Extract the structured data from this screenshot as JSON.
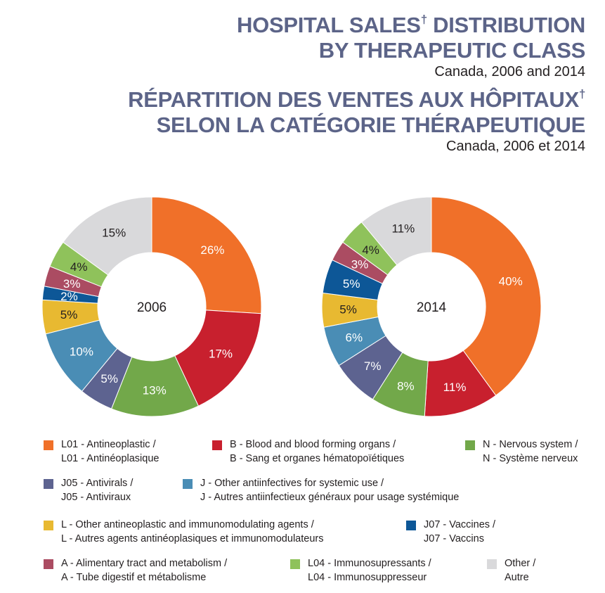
{
  "title_en_line1": "HOSPITAL SALES",
  "dagger": "†",
  "title_en_line1_b": " DISTRIBUTION",
  "title_en_line2": "BY THERAPEUTIC CLASS",
  "subtitle_en": "Canada, 2006 and 2014",
  "title_fr_line1": "RÉPARTITION DES VENTES AUX HÔPITAUX",
  "title_fr_line2": "SELON LA CATÉGORIE THÉRAPEUTIQUE",
  "subtitle_fr": "Canada, 2006 et 2014",
  "legend": [
    {
      "key": "L01",
      "color": "#f07029",
      "en": "L01 - Antineoplastic /",
      "fr": "L01 - Antinéoplasique"
    },
    {
      "key": "B",
      "color": "#c8202e",
      "en": "B - Blood and blood forming organs /",
      "fr": "B - Sang et organes hématopoïétiques"
    },
    {
      "key": "N",
      "color": "#72a84a",
      "en": "N - Nervous system /",
      "fr": "N - Système nerveux"
    },
    {
      "key": "J05",
      "color": "#5d6390",
      "en": "J05 - Antivirals /",
      "fr": "J05 - Antiviraux"
    },
    {
      "key": "J",
      "color": "#4a8db5",
      "en": "J - Other antiinfectives for systemic use /",
      "fr": "J - Autres antiinfectieux généraux pour usage systémique"
    },
    {
      "key": "L",
      "color": "#e8b931",
      "en": "L - Other antineoplastic and immunomodulating agents /",
      "fr": "L - Autres agents antinéoplasiques et immunomodulateurs"
    },
    {
      "key": "J07",
      "color": "#0d5797",
      "en": "J07 - Vaccines /",
      "fr": "J07 - Vaccins"
    },
    {
      "key": "A",
      "color": "#ab4c62",
      "en": "A - Alimentary tract and metabolism /",
      "fr": "A - Tube digestif et métabolisme"
    },
    {
      "key": "L04",
      "color": "#8fc25b",
      "en": "L04 - Immunosupressants /",
      "fr": "L04 - Immunosuppresseur"
    },
    {
      "key": "Other",
      "color": "#d9d9db",
      "en": "Other /",
      "fr": "Autre"
    }
  ],
  "chart_data": [
    {
      "type": "pie",
      "center_label": "2006",
      "categories": [
        "L01",
        "B",
        "N",
        "J05",
        "J",
        "L",
        "J07",
        "A",
        "L04",
        "Other"
      ],
      "values": [
        26,
        17,
        13,
        5,
        10,
        5,
        2,
        3,
        4,
        15
      ],
      "labels": [
        "26%",
        "17%",
        "13%",
        "5%",
        "10%",
        "5%",
        "2%",
        "3%",
        "4%",
        "15%"
      ]
    },
    {
      "type": "pie",
      "center_label": "2014",
      "categories": [
        "L01",
        "B",
        "N",
        "J05",
        "J",
        "L",
        "J07",
        "A",
        "L04",
        "Other"
      ],
      "values": [
        40,
        11,
        8,
        7,
        6,
        5,
        5,
        3,
        4,
        11
      ],
      "labels": [
        "40%",
        "11%",
        "8%",
        "7%",
        "6%",
        "5%",
        "5%",
        "3%",
        "4%",
        "11%"
      ]
    }
  ]
}
